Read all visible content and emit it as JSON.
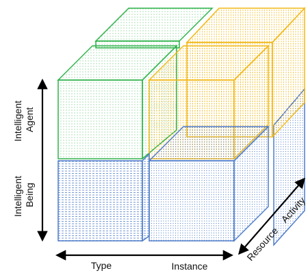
{
  "colors": {
    "green": "#2fb24a",
    "yellow": "#f2b816",
    "blue": "#4f7cc9",
    "axis": "#000000"
  },
  "axes": {
    "vertical": {
      "upper": [
        "Intelligent",
        "Agent"
      ],
      "lower": [
        "Intelligent",
        "Being"
      ]
    },
    "horizontal": {
      "left": "Type",
      "right": "Instance"
    },
    "depth": {
      "near": "Resource",
      "far": "Activity"
    }
  },
  "cubes": [
    {
      "id": "type-agent",
      "color": "green"
    },
    {
      "id": "instance-agent",
      "color": "yellow"
    },
    {
      "id": "type-being",
      "color": "blue"
    },
    {
      "id": "instance-being",
      "color": "blue"
    }
  ]
}
